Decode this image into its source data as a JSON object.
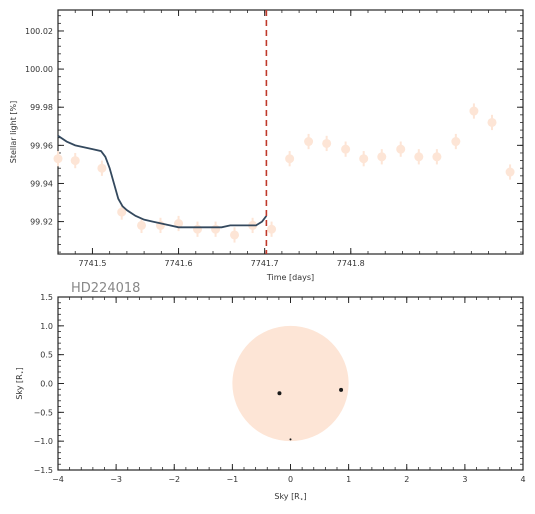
{
  "chart_data": [
    {
      "type": "scatter",
      "xlabel": "Time [days]",
      "ylabel": "Stellar light [%]",
      "xlim": [
        7741.46,
        7742.0
      ],
      "ylim": [
        99.903,
        100.031
      ],
      "xticks": [
        "7741.5",
        "7741.6",
        "7741.7",
        "7741.8"
      ],
      "xtick_values": [
        7741.5,
        7741.6,
        7741.7,
        7741.8
      ],
      "yticks": [
        "99.92",
        "99.94",
        "99.96",
        "99.98",
        "100.00",
        "100.02"
      ],
      "ytick_values": [
        99.92,
        99.94,
        99.96,
        99.98,
        100.0,
        100.02
      ],
      "grid": false,
      "series": [
        {
          "kind": "points_with_errorbars",
          "color": "#fde5d6",
          "x": [
            7741.46,
            7741.48,
            7741.511,
            7741.534,
            7741.557,
            7741.579,
            7741.6,
            7741.622,
            7741.643,
            7741.665,
            7741.686,
            7741.708,
            7741.729,
            7741.751,
            7741.772,
            7741.794,
            7741.815,
            7741.836,
            7741.858,
            7741.879,
            7741.9,
            7741.922,
            7741.943,
            7741.964,
            7741.985
          ],
          "y": [
            99.953,
            99.952,
            99.948,
            99.925,
            99.918,
            99.918,
            99.919,
            99.916,
            99.916,
            99.913,
            99.918,
            99.916,
            99.953,
            99.962,
            99.961,
            99.958,
            99.953,
            99.954,
            99.958,
            99.954,
            99.954,
            99.962,
            99.978,
            99.972,
            99.946
          ],
          "yerr": 0.004
        },
        {
          "kind": "model_line",
          "color": "#34495e",
          "x": [
            7741.46,
            7741.47,
            7741.48,
            7741.49,
            7741.5,
            7741.51,
            7741.515,
            7741.52,
            7741.525,
            7741.53,
            7741.535,
            7741.54,
            7741.55,
            7741.56,
            7741.57,
            7741.58,
            7741.59,
            7741.6,
            7741.61,
            7741.62,
            7741.63,
            7741.64,
            7741.65,
            7741.66,
            7741.67,
            7741.68,
            7741.69,
            7741.697,
            7741.702
          ],
          "y": [
            99.965,
            99.962,
            99.96,
            99.959,
            99.958,
            99.957,
            99.954,
            99.948,
            99.94,
            99.932,
            99.928,
            99.926,
            99.923,
            99.921,
            99.92,
            99.919,
            99.918,
            99.917,
            99.917,
            99.917,
            99.917,
            99.917,
            99.917,
            99.918,
            99.918,
            99.918,
            99.918,
            99.92,
            99.923
          ]
        }
      ],
      "vline": {
        "x": 7741.702,
        "color": "#c0392b",
        "style": "dashed"
      }
    },
    {
      "type": "scatter",
      "title": "HD224018",
      "xlabel": "Sky [$R_\\star$]",
      "ylabel": "Sky [$R_\\star$]",
      "xlabel_display": "Sky [R",
      "xlabel_sub": "⋆",
      "xlabel_end": "]",
      "ylabel_display": "Sky [R",
      "ylabel_sub": "⋆",
      "ylabel_end": "]",
      "xlim": [
        -4,
        4
      ],
      "ylim": [
        -1.5,
        1.5
      ],
      "xticks": [
        "−4",
        "−3",
        "−2",
        "−1",
        "0",
        "1",
        "2",
        "3",
        "4"
      ],
      "xtick_values": [
        -4,
        -3,
        -2,
        -1,
        0,
        1,
        2,
        3,
        4
      ],
      "yticks": [
        "−1.5",
        "−1.0",
        "−0.5",
        "0.0",
        "0.5",
        "1.0",
        "1.5"
      ],
      "ytick_values": [
        -1.5,
        -1.0,
        -0.5,
        0.0,
        0.5,
        1.0,
        1.5
      ],
      "grid": false,
      "star": {
        "x": 0,
        "y": 0,
        "radius": 1.0,
        "color": "#fde5d6"
      },
      "planets": [
        {
          "x": -0.19,
          "y": -0.17,
          "size": 2.0
        },
        {
          "x": 0.87,
          "y": -0.11,
          "size": 2.0
        },
        {
          "x": 0.0,
          "y": -0.97,
          "size": 1.0
        }
      ]
    }
  ]
}
